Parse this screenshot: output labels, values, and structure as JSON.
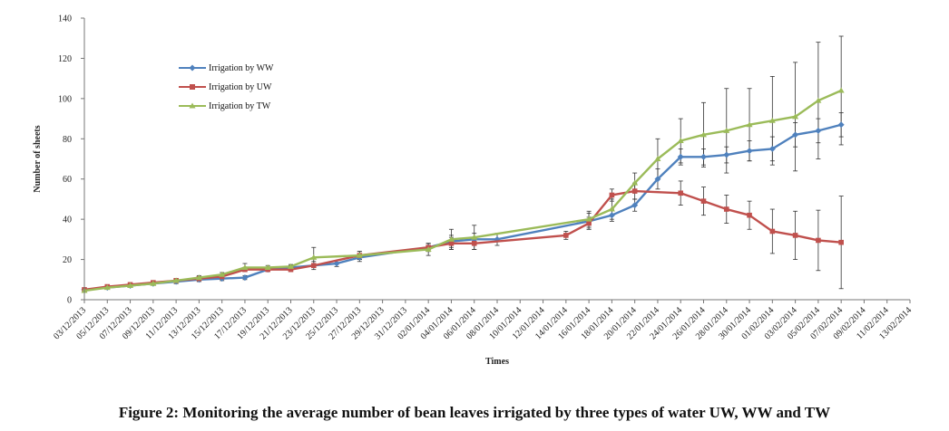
{
  "figure_caption": "Figure 2: Monitoring the average number of bean leaves irrigated by three types of water UW, WW and TW",
  "chart_data": {
    "type": "line",
    "title": "",
    "xlabel": "Times",
    "ylabel": "Number of sheets",
    "ylim": [
      0,
      140
    ],
    "yticks": [
      0,
      20,
      40,
      60,
      80,
      100,
      120,
      140
    ],
    "grid": false,
    "legend_position": "top-left",
    "categories": [
      "03/12/2013",
      "05/12/2013",
      "07/12/2013",
      "09/12/2013",
      "11/12/2013",
      "13/12/2013",
      "15/12/2013",
      "17/12/2013",
      "19/12/2013",
      "21/12/2013",
      "23/12/2013",
      "25/12/2013",
      "27/12/2013",
      "29/12/2013",
      "31/12/2013",
      "02/01/2014",
      "04/01/2014",
      "06/01/2014",
      "08/01/2014",
      "10/01/2014",
      "12/01/2014",
      "14/01/2014",
      "16/01/2014",
      "18/01/2014",
      "20/01/2014",
      "22/01/2014",
      "24/01/2014",
      "26/01/2014",
      "28/01/2014",
      "30/01/2014",
      "01/02/2014",
      "03/02/2014",
      "05/02/2014",
      "07/02/2014",
      "09/02/2014",
      "11/02/2014",
      "13/02/2014"
    ],
    "series": [
      {
        "name": "Irrigation by  WW",
        "color": "#4f81bd",
        "marker": "diamond",
        "points": [
          {
            "x": "03/12/2013",
            "y": 5,
            "err": 0.5
          },
          {
            "x": "05/12/2013",
            "y": 6,
            "err": 0.5
          },
          {
            "x": "07/12/2013",
            "y": 7,
            "err": 0.5
          },
          {
            "x": "09/12/2013",
            "y": 8,
            "err": 0.7
          },
          {
            "x": "11/12/2013",
            "y": 9,
            "err": 1
          },
          {
            "x": "13/12/2013",
            "y": 10,
            "err": 1
          },
          {
            "x": "15/12/2013",
            "y": 10.5,
            "err": 1
          },
          {
            "x": "17/12/2013",
            "y": 11,
            "err": 1
          },
          {
            "x": "19/12/2013",
            "y": 15,
            "err": 1
          },
          {
            "x": "21/12/2013",
            "y": 16,
            "err": 1
          },
          {
            "x": "23/12/2013",
            "y": 17,
            "err": 1
          },
          {
            "x": "25/12/2013",
            "y": 18,
            "err": 1.5
          },
          {
            "x": "27/12/2013",
            "y": 21,
            "err": 2
          },
          {
            "x": "02/01/2014",
            "y": 26,
            "err": 2
          },
          {
            "x": "04/01/2014",
            "y": 29,
            "err": 3
          },
          {
            "x": "06/01/2014",
            "y": 30,
            "err": 3
          },
          {
            "x": "08/01/2014",
            "y": 30,
            "err": 3
          },
          {
            "x": "16/01/2014",
            "y": 39,
            "err": 4
          },
          {
            "x": "18/01/2014",
            "y": 42,
            "err": 3
          },
          {
            "x": "20/01/2014",
            "y": 47,
            "err": 3
          },
          {
            "x": "22/01/2014",
            "y": 60,
            "err": 5
          },
          {
            "x": "24/01/2014",
            "y": 71,
            "err": 4
          },
          {
            "x": "26/01/2014",
            "y": 71,
            "err": 4
          },
          {
            "x": "28/01/2014",
            "y": 72,
            "err": 4
          },
          {
            "x": "30/01/2014",
            "y": 74,
            "err": 5
          },
          {
            "x": "01/02/2014",
            "y": 75,
            "err": 6
          },
          {
            "x": "03/02/2014",
            "y": 82,
            "err": 6
          },
          {
            "x": "05/02/2014",
            "y": 84,
            "err": 6
          },
          {
            "x": "07/02/2014",
            "y": 87,
            "err": 6
          }
        ]
      },
      {
        "name": "Irrigation by UW",
        "color": "#c0504d",
        "marker": "square",
        "points": [
          {
            "x": "03/12/2013",
            "y": 5,
            "err": 0.5
          },
          {
            "x": "05/12/2013",
            "y": 6.5,
            "err": 0.5
          },
          {
            "x": "07/12/2013",
            "y": 7.5,
            "err": 0.5
          },
          {
            "x": "09/12/2013",
            "y": 8.5,
            "err": 0.7
          },
          {
            "x": "11/12/2013",
            "y": 9.5,
            "err": 1
          },
          {
            "x": "13/12/2013",
            "y": 10.5,
            "err": 1
          },
          {
            "x": "15/12/2013",
            "y": 11.5,
            "err": 1
          },
          {
            "x": "17/12/2013",
            "y": 15,
            "err": 1
          },
          {
            "x": "19/12/2013",
            "y": 15,
            "err": 1
          },
          {
            "x": "21/12/2013",
            "y": 15,
            "err": 1
          },
          {
            "x": "23/12/2013",
            "y": 17,
            "err": 2
          },
          {
            "x": "27/12/2013",
            "y": 22,
            "err": 2
          },
          {
            "x": "02/01/2014",
            "y": 26,
            "err": 2
          },
          {
            "x": "04/01/2014",
            "y": 28,
            "err": 3
          },
          {
            "x": "06/01/2014",
            "y": 28,
            "err": 3
          },
          {
            "x": "14/01/2014",
            "y": 32,
            "err": 2
          },
          {
            "x": "16/01/2014",
            "y": 38,
            "err": 3
          },
          {
            "x": "18/01/2014",
            "y": 52,
            "err": 3
          },
          {
            "x": "20/01/2014",
            "y": 54,
            "err": 4
          },
          {
            "x": "24/01/2014",
            "y": 53,
            "err": 6
          },
          {
            "x": "26/01/2014",
            "y": 49,
            "err": 7
          },
          {
            "x": "28/01/2014",
            "y": 45,
            "err": 7
          },
          {
            "x": "30/01/2014",
            "y": 42,
            "err": 7
          },
          {
            "x": "01/02/2014",
            "y": 34,
            "err": 11
          },
          {
            "x": "03/02/2014",
            "y": 32,
            "err": 12
          },
          {
            "x": "05/02/2014",
            "y": 29.5,
            "err": 15
          },
          {
            "x": "07/02/2014",
            "y": 28.5,
            "err": 23
          }
        ]
      },
      {
        "name": "Irrigation  by TW",
        "color": "#9bbb59",
        "marker": "triangle",
        "points": [
          {
            "x": "03/12/2013",
            "y": 4.5,
            "err": 0.5
          },
          {
            "x": "05/12/2013",
            "y": 6,
            "err": 0.5
          },
          {
            "x": "07/12/2013",
            "y": 7,
            "err": 0.5
          },
          {
            "x": "09/12/2013",
            "y": 8,
            "err": 0.7
          },
          {
            "x": "11/12/2013",
            "y": 9.5,
            "err": 1
          },
          {
            "x": "13/12/2013",
            "y": 11,
            "err": 1
          },
          {
            "x": "15/12/2013",
            "y": 12.5,
            "err": 1
          },
          {
            "x": "17/12/2013",
            "y": 16,
            "err": 2
          },
          {
            "x": "19/12/2013",
            "y": 16,
            "err": 1
          },
          {
            "x": "21/12/2013",
            "y": 16.5,
            "err": 1
          },
          {
            "x": "23/12/2013",
            "y": 21,
            "err": 5
          },
          {
            "x": "27/12/2013",
            "y": 22,
            "err": 2
          },
          {
            "x": "02/01/2014",
            "y": 25,
            "err": 3
          },
          {
            "x": "04/01/2014",
            "y": 30,
            "err": 5
          },
          {
            "x": "06/01/2014",
            "y": 31,
            "err": 6
          },
          {
            "x": "16/01/2014",
            "y": 40,
            "err": 4
          },
          {
            "x": "18/01/2014",
            "y": 45,
            "err": 5
          },
          {
            "x": "20/01/2014",
            "y": 58,
            "err": 5
          },
          {
            "x": "22/01/2014",
            "y": 70,
            "err": 10
          },
          {
            "x": "24/01/2014",
            "y": 79,
            "err": 11
          },
          {
            "x": "26/01/2014",
            "y": 82,
            "err": 16
          },
          {
            "x": "28/01/2014",
            "y": 84,
            "err": 21
          },
          {
            "x": "30/01/2014",
            "y": 87,
            "err": 18
          },
          {
            "x": "01/02/2014",
            "y": 89,
            "err": 22
          },
          {
            "x": "03/02/2014",
            "y": 91,
            "err": 27
          },
          {
            "x": "05/02/2014",
            "y": 99,
            "err": 29
          },
          {
            "x": "07/02/2014",
            "y": 104,
            "err": 27
          }
        ]
      }
    ]
  }
}
